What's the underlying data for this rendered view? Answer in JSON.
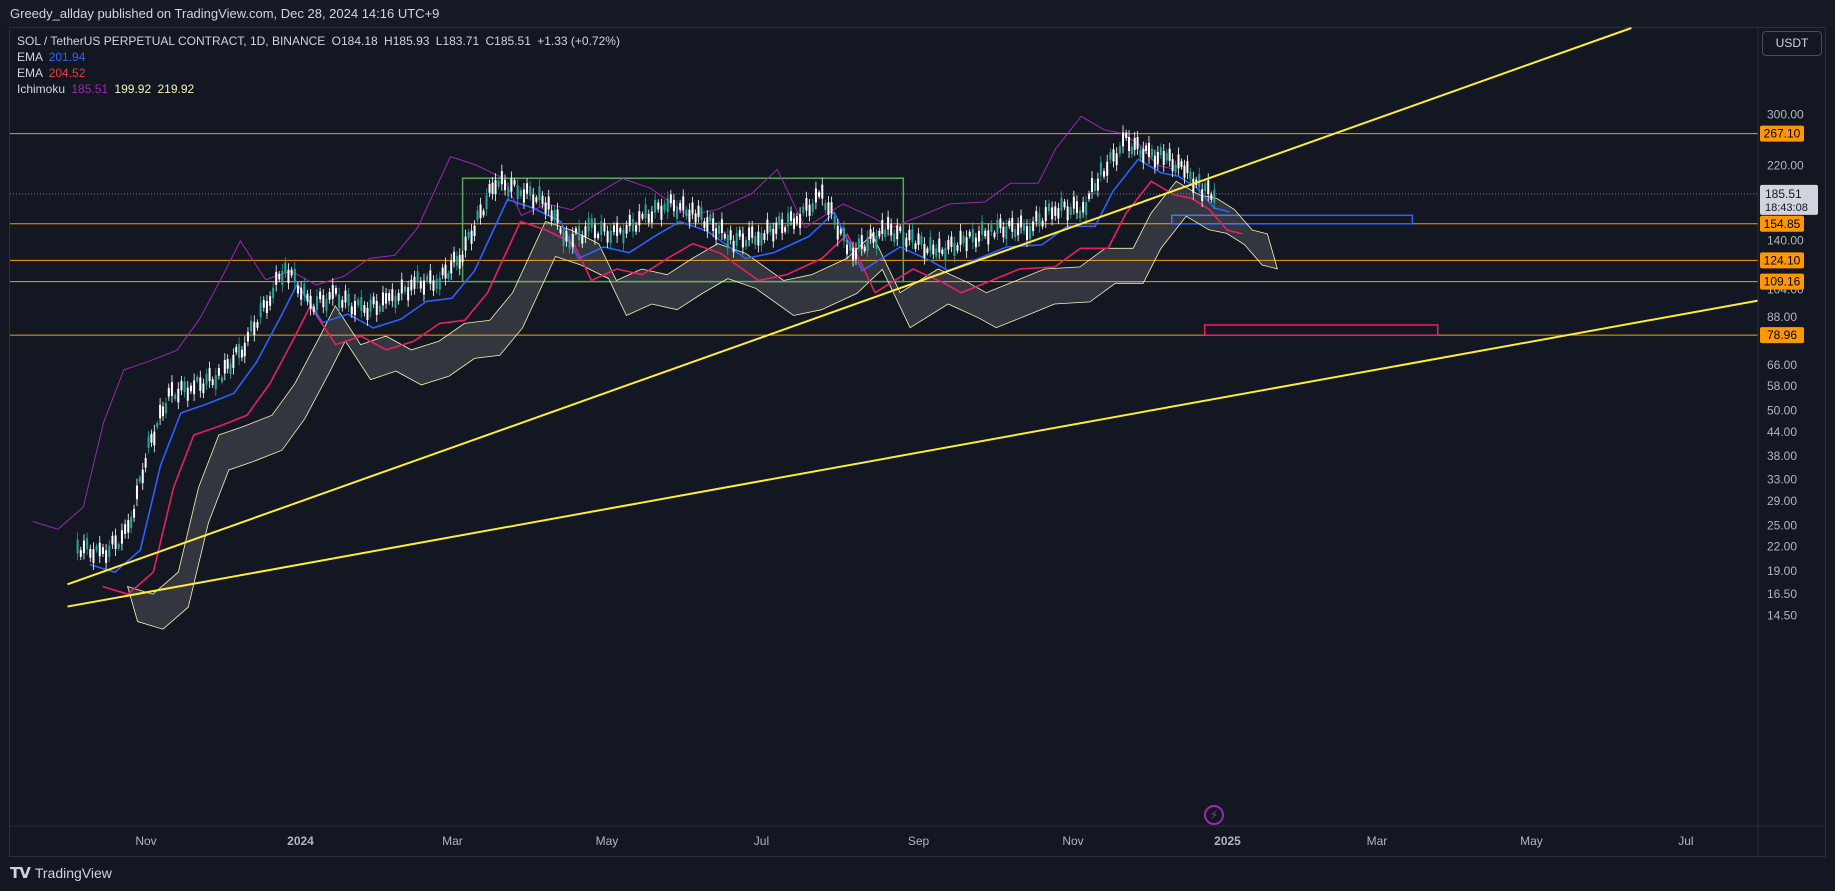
{
  "header": {
    "published_text": "Greedy_allday published on TradingView.com, Dec 28, 2024 14:16 UTC+9"
  },
  "legend": {
    "symbol": "SOL / TetherUS PERPETUAL CONTRACT, 1D, BINANCE",
    "open_label": "O",
    "open": "184.18",
    "high_label": "H",
    "high": "185.93",
    "low_label": "L",
    "low": "183.71",
    "close_label": "C",
    "close": "185.51",
    "change": "+1.33 (+0.72%)",
    "ema1_label": "EMA",
    "ema1_value": "201.94",
    "ema1_color": "#2962ff",
    "ema2_label": "EMA",
    "ema2_value": "204.52",
    "ema2_color": "#f23645",
    "ichimoku_label": "Ichimoku",
    "ichi_v1": "185.51",
    "ichi_v2": "199.92",
    "ichi_v3": "219.92",
    "ichi_c1": "#9c27b0",
    "ichi_c2": "#f7f3b2",
    "ichi_c3": "#f7f3b2"
  },
  "currency_button": "USDT",
  "footer": {
    "brand": "TradingView",
    "logo": "tradingview-logo-icon"
  },
  "colors": {
    "background": "#131722",
    "candle_up": "#26a69a",
    "candle_outline": "#ffffff",
    "ema_fast": "#2962ff",
    "ema_slow": "#e91e63",
    "lagging": "#9c27b0",
    "cloud": "#f7f3b2",
    "trendline": "#ffeb3b",
    "hline": "#ff9800",
    "range_box": "#4caf50",
    "blue_box": "#2962ff",
    "pink_box": "#e91e63"
  },
  "chart_data": {
    "type": "candlestick",
    "scale": "log",
    "ylim": [
      13.5,
      330
    ],
    "y_ticks": [
      "300.00",
      "267.10",
      "220.00",
      "185.51",
      "154.85",
      "140.00",
      "124.10",
      "109.16",
      "104.00",
      "88.00",
      "78.96",
      "66.00",
      "58.00",
      "50.00",
      "44.00",
      "38.00",
      "33.00",
      "29.00",
      "25.00",
      "22.00",
      "19.00",
      "16.50",
      "14.50"
    ],
    "y_tick_values": [
      300,
      267.1,
      220,
      185.51,
      154.85,
      140,
      124.1,
      109.16,
      104,
      88,
      78.96,
      66,
      58,
      50,
      44,
      38,
      33,
      29,
      25,
      22,
      19,
      16.5,
      14.5
    ],
    "x_labels": [
      "Nov",
      "2024",
      "Mar",
      "May",
      "Jul",
      "Sep",
      "Nov",
      "2025",
      "Mar",
      "May",
      "Jul"
    ],
    "x_label_dates": [
      "2023-11-01",
      "2024-01-01",
      "2024-03-01",
      "2024-05-01",
      "2024-07-01",
      "2024-09-01",
      "2024-11-01",
      "2025-01-01",
      "2025-03-01",
      "2025-05-01",
      "2025-07-01"
    ],
    "highlighted_levels": [
      {
        "value": 267.1,
        "label": "267.10"
      },
      {
        "value": 154.85,
        "label": "154.85"
      },
      {
        "value": 124.1,
        "label": "124.10"
      },
      {
        "value": 109.16,
        "label": "109.16"
      },
      {
        "value": 78.96,
        "label": "78.96"
      }
    ],
    "last_price": {
      "value": 185.51,
      "label": "185.51",
      "countdown": "18:43:08"
    },
    "price_path": [
      [
        "2023-10-05",
        22
      ],
      [
        "2023-10-15",
        21
      ],
      [
        "2023-10-25",
        24
      ],
      [
        "2023-11-02",
        40
      ],
      [
        "2023-11-10",
        55
      ],
      [
        "2023-11-20",
        58
      ],
      [
        "2023-12-01",
        62
      ],
      [
        "2023-12-10",
        75
      ],
      [
        "2023-12-20",
        100
      ],
      [
        "2023-12-26",
        120
      ],
      [
        "2024-01-05",
        95
      ],
      [
        "2024-01-15",
        100
      ],
      [
        "2024-01-25",
        92
      ],
      [
        "2024-02-05",
        97
      ],
      [
        "2024-02-15",
        108
      ],
      [
        "2024-02-25",
        110
      ],
      [
        "2024-03-05",
        130
      ],
      [
        "2024-03-18",
        200
      ],
      [
        "2024-03-28",
        190
      ],
      [
        "2024-04-08",
        175
      ],
      [
        "2024-04-15",
        140
      ],
      [
        "2024-04-25",
        150
      ],
      [
        "2024-05-05",
        145
      ],
      [
        "2024-05-15",
        160
      ],
      [
        "2024-05-25",
        175
      ],
      [
        "2024-06-05",
        165
      ],
      [
        "2024-06-20",
        140
      ],
      [
        "2024-07-01",
        145
      ],
      [
        "2024-07-15",
        160
      ],
      [
        "2024-07-25",
        185
      ],
      [
        "2024-08-05",
        130
      ],
      [
        "2024-08-20",
        150
      ],
      [
        "2024-09-01",
        138
      ],
      [
        "2024-09-08",
        130
      ],
      [
        "2024-09-20",
        140
      ],
      [
        "2024-10-01",
        150
      ],
      [
        "2024-10-15",
        152
      ],
      [
        "2024-10-25",
        170
      ],
      [
        "2024-11-05",
        170
      ],
      [
        "2024-11-12",
        210
      ],
      [
        "2024-11-22",
        255
      ],
      [
        "2024-12-01",
        235
      ],
      [
        "2024-12-08",
        230
      ],
      [
        "2024-12-15",
        215
      ],
      [
        "2024-12-22",
        190
      ],
      [
        "2024-12-28",
        185.51
      ]
    ],
    "range_box": {
      "from": "2024-03-05",
      "to": "2024-08-26",
      "top": 204,
      "bottom": 109.16
    },
    "blue_box": {
      "from": "2024-12-10",
      "to": "2025-03-15",
      "top": 163,
      "bottom": 154.85
    },
    "pink_box": {
      "from": "2024-12-23",
      "to": "2025-03-25",
      "top": 84,
      "bottom": 78.96
    },
    "trendlines": [
      {
        "from": [
          "2023-10-01",
          17.5
        ],
        "to": [
          "2024-09-01",
          109.16
        ]
      },
      {
        "from": [
          "2023-10-01",
          15.3
        ],
        "to": [
          "2025-08-01",
          98
        ]
      }
    ]
  }
}
